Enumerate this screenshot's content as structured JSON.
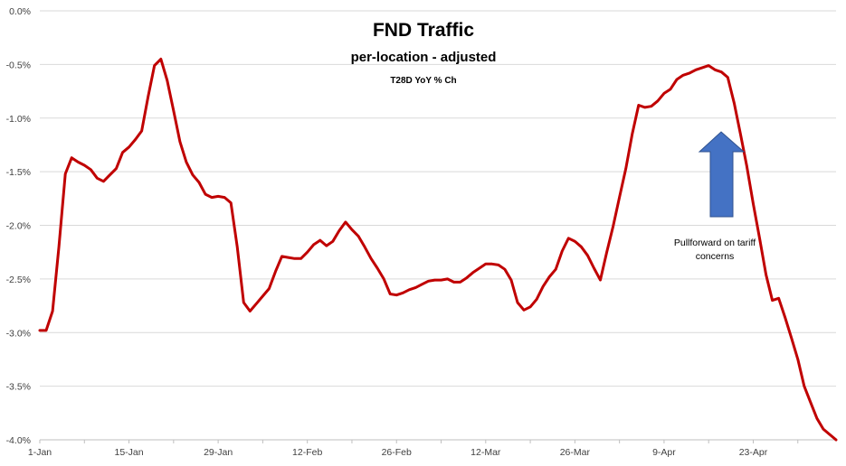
{
  "chart_data": {
    "type": "line",
    "title": "FND Traffic",
    "subtitle": "per-location - adjusted",
    "subtitle2": "T28D YoY % Ch",
    "xlabel": "",
    "ylabel": "",
    "x_tick_labels": [
      "1-Jan",
      "15-Jan",
      "29-Jan",
      "12-Feb",
      "26-Feb",
      "12-Mar",
      "26-Mar",
      "9-Apr",
      "23-Apr"
    ],
    "y_tick_labels": [
      "0.0%",
      "-0.5%",
      "-1.0%",
      "-1.5%",
      "-2.0%",
      "-2.5%",
      "-3.0%",
      "-3.5%",
      "-4.0%"
    ],
    "ylim": [
      -4.0,
      0.0
    ],
    "xlim_days": [
      0,
      125
    ],
    "grid": "horizontal",
    "legend": "none",
    "line_color": "#c00000",
    "annotation": {
      "text_line1": "Pullforward on tariff",
      "text_line2": "concerns",
      "arrow_color": "#4472c4",
      "arrow_direction": "up"
    },
    "series": [
      {
        "x": [
          0,
          1,
          2,
          3,
          4,
          5,
          6,
          7,
          8,
          9,
          10,
          11,
          12,
          13,
          14,
          15,
          16,
          17,
          18,
          19,
          20,
          21,
          22,
          23,
          24,
          25,
          26,
          27,
          28,
          29,
          30,
          31,
          32,
          33,
          34,
          35,
          36,
          37,
          38,
          39,
          40,
          41,
          42,
          43,
          44,
          45,
          46,
          47,
          48,
          49,
          50,
          51,
          52,
          53,
          54,
          55,
          56,
          57,
          58,
          59,
          60,
          61,
          62,
          63,
          64,
          65,
          66,
          67,
          68,
          69,
          70,
          71,
          72,
          73,
          74,
          75,
          76,
          77,
          78,
          79,
          80,
          81,
          82,
          83,
          84,
          85,
          86,
          87,
          88,
          89,
          90,
          91,
          92,
          93,
          94,
          95,
          96,
          97,
          98,
          99,
          100,
          101,
          102,
          103,
          104,
          105,
          106,
          107,
          108,
          109,
          110,
          111,
          112,
          113,
          114,
          115,
          116,
          117,
          118,
          119,
          120,
          121,
          122,
          123,
          124,
          125
        ],
        "values": [
          -2.98,
          -2.98,
          -2.8,
          -2.2,
          -1.52,
          -1.37,
          -1.41,
          -1.44,
          -1.48,
          -1.56,
          -1.59,
          -1.53,
          -1.47,
          -1.32,
          -1.27,
          -1.2,
          -1.12,
          -0.8,
          -0.51,
          -0.45,
          -0.65,
          -0.93,
          -1.22,
          -1.41,
          -1.53,
          -1.6,
          -1.71,
          -1.74,
          -1.73,
          -1.74,
          -1.79,
          -2.2,
          -2.72,
          -2.8,
          -2.73,
          -2.66,
          -2.59,
          -2.43,
          -2.29,
          -2.3,
          -2.31,
          -2.31,
          -2.25,
          -2.18,
          -2.14,
          -2.19,
          -2.15,
          -2.05,
          -1.97,
          -2.04,
          -2.1,
          -2.2,
          -2.31,
          -2.4,
          -2.5,
          -2.64,
          -2.65,
          -2.63,
          -2.6,
          -2.58,
          -2.55,
          -2.52,
          -2.51,
          -2.51,
          -2.5,
          -2.53,
          -2.53,
          -2.49,
          -2.44,
          -2.4,
          -2.36,
          -2.36,
          -2.37,
          -2.41,
          -2.51,
          -2.72,
          -2.79,
          -2.76,
          -2.69,
          -2.57,
          -2.48,
          -2.41,
          -2.24,
          -2.12,
          -2.15,
          -2.2,
          -2.28,
          -2.4,
          -2.51,
          -2.25,
          -2.01,
          -1.74,
          -1.47,
          -1.15,
          -0.88,
          -0.9,
          -0.89,
          -0.84,
          -0.77,
          -0.73,
          -0.64,
          -0.6,
          -0.58,
          -0.55,
          -0.53,
          -0.51,
          -0.55,
          -0.57,
          -0.62,
          -0.86,
          -1.15,
          -1.45,
          -1.8,
          -2.12,
          -2.46,
          -2.7,
          -2.68,
          -2.86,
          -3.05,
          -3.25,
          -3.5,
          -3.65,
          -3.8,
          -3.9,
          -3.95,
          -4.0
        ]
      }
    ]
  }
}
